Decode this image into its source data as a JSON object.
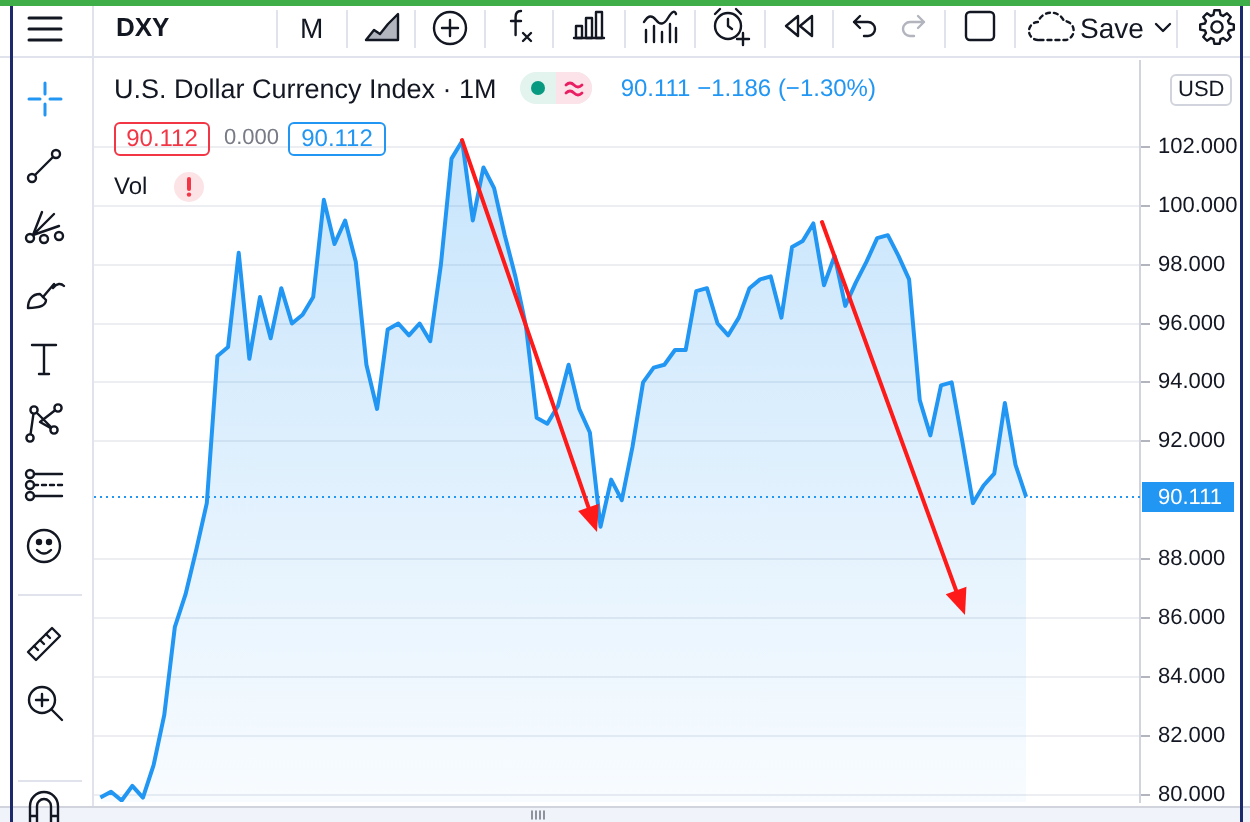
{
  "chart_data": {
    "type": "area",
    "title": "U.S. Dollar Currency Index · 1M",
    "subtitle": "90.111 −1.186 (−1.30%)",
    "annotations": [
      "DXY",
      "M",
      "Save",
      "90.112",
      "0.000",
      "90.112",
      "Vol",
      "USD"
    ],
    "categories": [
      null,
      null,
      null,
      null,
      null,
      null,
      null,
      null,
      null,
      null,
      null,
      null,
      null,
      null,
      null,
      null,
      null,
      null,
      null,
      null,
      null,
      null,
      null,
      null,
      null,
      null,
      null,
      null,
      null,
      null,
      null,
      null,
      null,
      null,
      null,
      null,
      null,
      null,
      null,
      null,
      null,
      null,
      null,
      null,
      null,
      null,
      null,
      null,
      null,
      null,
      null,
      null,
      null,
      null,
      null,
      null,
      null,
      null,
      null,
      null,
      null,
      null,
      null,
      null,
      null,
      null,
      null,
      null,
      null,
      null,
      null,
      null,
      null,
      null,
      null,
      null,
      null,
      null,
      null,
      null,
      null,
      null,
      null,
      null,
      null,
      null,
      null,
      null
    ],
    "values": [
      79.9,
      80.1,
      79.8,
      80.3,
      79.9,
      81.0,
      82.7,
      85.7,
      86.8,
      88.3,
      89.9,
      94.9,
      95.2,
      98.4,
      94.8,
      96.9,
      95.5,
      97.2,
      96.0,
      96.3,
      96.9,
      100.2,
      98.7,
      99.5,
      98.1,
      94.6,
      93.1,
      95.8,
      96.0,
      95.6,
      96.0,
      95.4,
      98.0,
      101.6,
      102.2,
      99.5,
      101.3,
      100.6,
      99.0,
      97.6,
      95.9,
      92.8,
      92.6,
      93.2,
      94.6,
      93.1,
      92.3,
      89.1,
      90.7,
      90.0,
      91.8,
      94.0,
      94.5,
      94.6,
      95.1,
      95.1,
      97.1,
      97.2,
      96.0,
      95.6,
      96.2,
      97.2,
      97.5,
      97.6,
      96.2,
      98.6,
      98.8,
      99.4,
      97.3,
      98.3,
      96.6,
      97.4,
      98.1,
      98.9,
      99.0,
      98.3,
      97.5,
      93.4,
      92.2,
      93.9,
      94.0,
      92.0,
      89.9,
      90.5,
      90.9,
      93.3,
      91.2,
      90.111
    ],
    "color": "#2196f3",
    "ylim": [
      79.75,
      104.95
    ],
    "yticks": [
      {
        "value": 80,
        "label": "80.000"
      },
      {
        "value": 82,
        "label": "82.000"
      },
      {
        "value": 84,
        "label": "84.000"
      },
      {
        "value": 86,
        "label": "86.000"
      },
      {
        "value": 88,
        "label": "88.000"
      },
      {
        "value": 92,
        "label": "92.000"
      },
      {
        "value": 94,
        "label": "94.000"
      },
      {
        "value": 96,
        "label": "96.000"
      },
      {
        "value": 98,
        "label": "98.000"
      },
      {
        "value": 100,
        "label": "100.000"
      },
      {
        "value": 102,
        "label": "102.000"
      }
    ],
    "grid": "y",
    "tick_labels": "y",
    "ref_lines": [
      {
        "axis": "y",
        "value": 90.111,
        "label": "90.111",
        "color": "#2196f3",
        "line_style": "dotted"
      }
    ]
  }
}
